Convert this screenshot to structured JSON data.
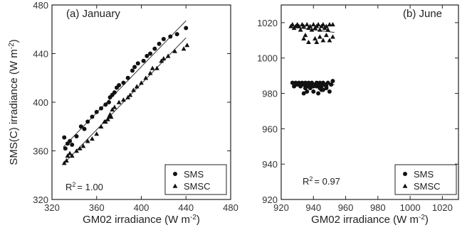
{
  "chart_data": [
    {
      "type": "scatter",
      "title": "(a) January",
      "xlabel": "GM02 irradiance",
      "ylabel": "SMS(C) irradiance",
      "unit": "(W m",
      "unit_exp": "-2",
      "unit_close": ")",
      "xlim": [
        320,
        480
      ],
      "ylim": [
        320,
        480
      ],
      "xticks": [
        "320",
        "360",
        "400",
        "440",
        "480"
      ],
      "yticks": [
        "320",
        "360",
        "400",
        "440",
        "480"
      ],
      "r2_label": "R",
      "r2_exp": "2",
      "r2_value": "= 1.00",
      "legend": [
        {
          "name": "SMS",
          "marker": "circle"
        },
        {
          "name": "SMSC",
          "marker": "triangle"
        }
      ],
      "series": [
        {
          "name": "SMS",
          "marker": "circle",
          "points": [
            [
              331,
              371
            ],
            [
              332,
              362
            ],
            [
              334,
              366
            ],
            [
              336,
              368
            ],
            [
              338,
              365
            ],
            [
              342,
              372
            ],
            [
              346,
              380
            ],
            [
              349,
              378
            ],
            [
              352,
              384
            ],
            [
              356,
              388
            ],
            [
              360,
              392
            ],
            [
              364,
              395
            ],
            [
              368,
              398
            ],
            [
              371,
              400
            ],
            [
              372,
              404
            ],
            [
              374,
              406
            ],
            [
              376,
              408
            ],
            [
              378,
              412
            ],
            [
              380,
              414
            ],
            [
              384,
              416
            ],
            [
              388,
              420
            ],
            [
              392,
              426
            ],
            [
              394,
              429
            ],
            [
              397,
              432
            ],
            [
              402,
              434
            ],
            [
              405,
              438
            ],
            [
              408,
              440
            ],
            [
              412,
              444
            ],
            [
              416,
              448
            ],
            [
              420,
              452
            ],
            [
              426,
              454
            ],
            [
              432,
              456
            ],
            [
              440,
              461
            ]
          ]
        },
        {
          "name": "SMSC",
          "marker": "triangle",
          "points": [
            [
              331,
              350
            ],
            [
              333,
              352
            ],
            [
              334,
              356
            ],
            [
              336,
              358
            ],
            [
              338,
              356
            ],
            [
              342,
              360
            ],
            [
              345,
              362
            ],
            [
              348,
              364
            ],
            [
              352,
              368
            ],
            [
              356,
              370
            ],
            [
              360,
              374
            ],
            [
              364,
              380
            ],
            [
              367,
              384
            ],
            [
              368,
              384
            ],
            [
              370,
              386
            ],
            [
              371,
              388
            ],
            [
              372,
              390
            ],
            [
              373,
              388
            ],
            [
              374,
              394
            ],
            [
              376,
              396
            ],
            [
              380,
              400
            ],
            [
              384,
              402
            ],
            [
              388,
              404
            ],
            [
              390,
              406
            ],
            [
              393,
              410
            ],
            [
              396,
              413
            ],
            [
              400,
              416
            ],
            [
              404,
              420
            ],
            [
              408,
              424
            ],
            [
              410,
              428
            ],
            [
              414,
              428
            ],
            [
              418,
              434
            ],
            [
              420,
              436
            ],
            [
              424,
              438
            ],
            [
              430,
              442
            ],
            [
              438,
              444
            ],
            [
              441,
              447
            ]
          ]
        }
      ],
      "fit_lines": [
        {
          "series": "SMS",
          "x": [
            330,
            440
          ],
          "y": [
            363,
            467
          ]
        },
        {
          "series": "SMSC",
          "x": [
            330,
            440
          ],
          "y": [
            349,
            453
          ]
        }
      ]
    },
    {
      "type": "scatter",
      "title": "(b) June",
      "xlabel": "GM02 irradiance",
      "ylabel": "",
      "unit": "(W m",
      "unit_exp": "-2",
      "unit_close": ")",
      "xlim": [
        920,
        1030
      ],
      "ylim": [
        920,
        1030
      ],
      "xticks": [
        "920",
        "940",
        "960",
        "980",
        "1000",
        "1020"
      ],
      "yticks": [
        "920",
        "940",
        "960",
        "980",
        "1000",
        "1020"
      ],
      "r2_label": "R",
      "r2_exp": "2",
      "r2_value": "= 0.97",
      "legend": [
        {
          "name": "SMS",
          "marker": "circle"
        },
        {
          "name": "SMSC",
          "marker": "triangle"
        }
      ],
      "series": [
        {
          "name": "SMS",
          "marker": "circle",
          "points": [
            [
              927,
              986
            ],
            [
              928,
              984
            ],
            [
              929,
              986
            ],
            [
              930,
              985
            ],
            [
              931,
              986
            ],
            [
              932,
              984
            ],
            [
              933,
              986
            ],
            [
              934,
              985
            ],
            [
              935,
              983
            ],
            [
              935,
              986
            ],
            [
              936,
              984
            ],
            [
              937,
              986
            ],
            [
              938,
              983
            ],
            [
              938,
              985
            ],
            [
              939,
              986
            ],
            [
              940,
              984
            ],
            [
              940,
              981
            ],
            [
              941,
              985
            ],
            [
              942,
              986
            ],
            [
              942,
              984
            ],
            [
              943,
              985
            ],
            [
              944,
              986
            ],
            [
              944,
              983
            ],
            [
              945,
              984
            ],
            [
              946,
              986
            ],
            [
              946,
              982
            ],
            [
              947,
              985
            ],
            [
              948,
              984
            ],
            [
              949,
              986
            ],
            [
              950,
              981
            ],
            [
              951,
              985
            ],
            [
              952,
              987
            ],
            [
              934,
              980
            ],
            [
              936,
              981
            ],
            [
              943,
              980
            ],
            [
              945,
              982
            ],
            [
              948,
              983
            ]
          ]
        },
        {
          "name": "SMSC",
          "marker": "triangle",
          "points": [
            [
              926,
              1018
            ],
            [
              927,
              1019
            ],
            [
              928,
              1017
            ],
            [
              929,
              1018
            ],
            [
              930,
              1019
            ],
            [
              931,
              1018
            ],
            [
              932,
              1016
            ],
            [
              933,
              1019
            ],
            [
              934,
              1018
            ],
            [
              934,
              1011
            ],
            [
              935,
              1013
            ],
            [
              936,
              1019
            ],
            [
              937,
              1017
            ],
            [
              937,
              1009
            ],
            [
              938,
              1018
            ],
            [
              939,
              1016
            ],
            [
              940,
              1019
            ],
            [
              941,
              1017
            ],
            [
              941,
              1011
            ],
            [
              942,
              1018
            ],
            [
              942,
              1009
            ],
            [
              943,
              1019
            ],
            [
              944,
              1016
            ],
            [
              944,
              1012
            ],
            [
              945,
              1018
            ],
            [
              946,
              1019
            ],
            [
              946,
              1010
            ],
            [
              947,
              1017
            ],
            [
              948,
              1018
            ],
            [
              948,
              1013
            ],
            [
              949,
              1016
            ],
            [
              950,
              1019
            ],
            [
              950,
              1010
            ],
            [
              952,
              1019
            ],
            [
              952,
              1012
            ]
          ]
        }
      ],
      "fit_lines": [
        {
          "series": "SMS",
          "x": [
            926,
            953
          ],
          "y": [
            985.3,
            985.0
          ]
        },
        {
          "series": "SMSC",
          "x": [
            926,
            953
          ],
          "y": [
            1017.5,
            1014.5
          ]
        }
      ]
    }
  ]
}
